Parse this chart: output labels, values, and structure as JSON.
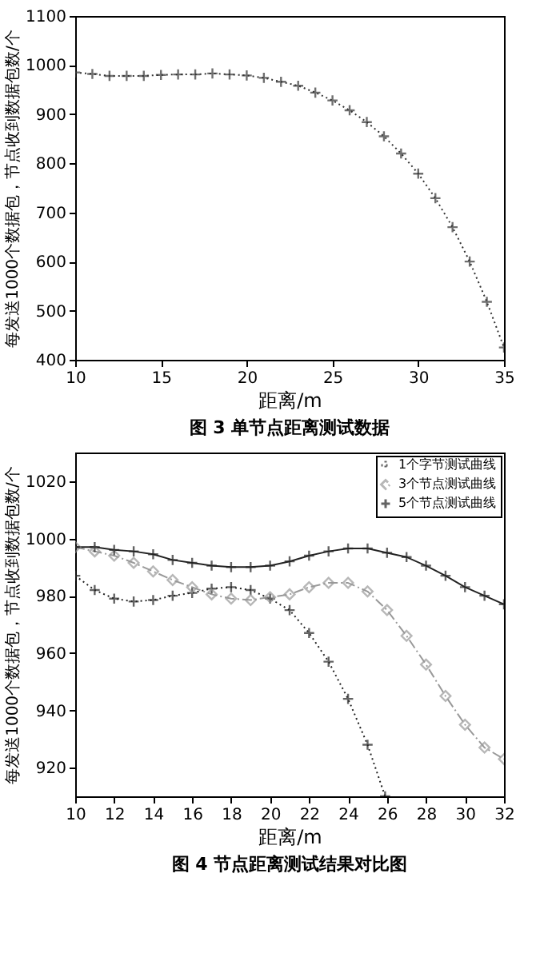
{
  "chart_data": [
    {
      "type": "line",
      "title": "图 3   单节点距离测试数据",
      "xlabel": "距离/m",
      "ylabel": "每发送1000个数据包，节点收到数据包数/个",
      "x": [
        10,
        11,
        12,
        13,
        14,
        15,
        16,
        17,
        18,
        19,
        20,
        21,
        22,
        23,
        24,
        25,
        26,
        27,
        28,
        29,
        30,
        31,
        32,
        33,
        34,
        35
      ],
      "series": [
        {
          "color": "#333333",
          "marker": "cross",
          "line_style": "dotted",
          "values": [
            985,
            982,
            978,
            978,
            978,
            980,
            981,
            981,
            983,
            981,
            979,
            974,
            966,
            958,
            944,
            928,
            908,
            884,
            855,
            820,
            779,
            729,
            670,
            600,
            518,
            425
          ]
        }
      ],
      "xlim": [
        10,
        35
      ],
      "ylim": [
        400,
        1100
      ],
      "xticks": [
        10,
        15,
        20,
        25,
        30,
        35
      ],
      "yticks": [
        400,
        500,
        600,
        700,
        800,
        900,
        1000,
        1100
      ],
      "grid": false,
      "legend": false
    },
    {
      "type": "line",
      "title": "图 4   节点距离测试结果对比图",
      "xlabel": "距离/m",
      "ylabel": "每发送1000个数据包，节点收到数据包数/个",
      "x": [
        10,
        11,
        12,
        13,
        14,
        15,
        16,
        17,
        18,
        19,
        20,
        21,
        22,
        23,
        24,
        25,
        26,
        27,
        28,
        29,
        30,
        31,
        32
      ],
      "series": [
        {
          "name": "1个字节测试曲线",
          "color": "#222222",
          "marker": "cross",
          "line_style": "dotted",
          "x": [
            10,
            11,
            12,
            13,
            14,
            15,
            16,
            17,
            18,
            19,
            20,
            21,
            22,
            23,
            24,
            25,
            25.9
          ],
          "values": [
            987,
            982,
            979,
            978,
            978.5,
            980,
            981,
            982.5,
            983,
            982,
            979,
            975,
            967,
            957,
            944,
            928,
            910
          ]
        },
        {
          "name": "3个节点测试曲线",
          "color": "#999999",
          "marker": "diamond",
          "line_style": "dashed",
          "values": [
            997,
            995.5,
            994,
            991.5,
            988.5,
            985.5,
            983,
            980.5,
            979,
            978.5,
            979.5,
            980.5,
            983,
            984.5,
            984.5,
            981.5,
            975,
            966,
            956,
            945,
            935,
            927,
            923
          ]
        },
        {
          "name": "5个节点测试曲线",
          "color": "#222222",
          "marker": "cross",
          "line_style": "solid",
          "values": [
            997,
            997,
            996,
            995.5,
            994.5,
            992.5,
            991.5,
            990.5,
            990,
            990,
            990.5,
            992,
            994,
            995.5,
            996.5,
            996.5,
            995,
            993.5,
            990.5,
            987,
            983,
            980,
            977
          ]
        }
      ],
      "xlim": [
        10,
        32
      ],
      "ylim": [
        910,
        1030
      ],
      "xticks": [
        10,
        12,
        14,
        16,
        18,
        20,
        22,
        24,
        26,
        28,
        30,
        32
      ],
      "yticks": [
        920,
        940,
        960,
        980,
        1000,
        1020
      ],
      "grid": false,
      "legend": "top right"
    }
  ]
}
